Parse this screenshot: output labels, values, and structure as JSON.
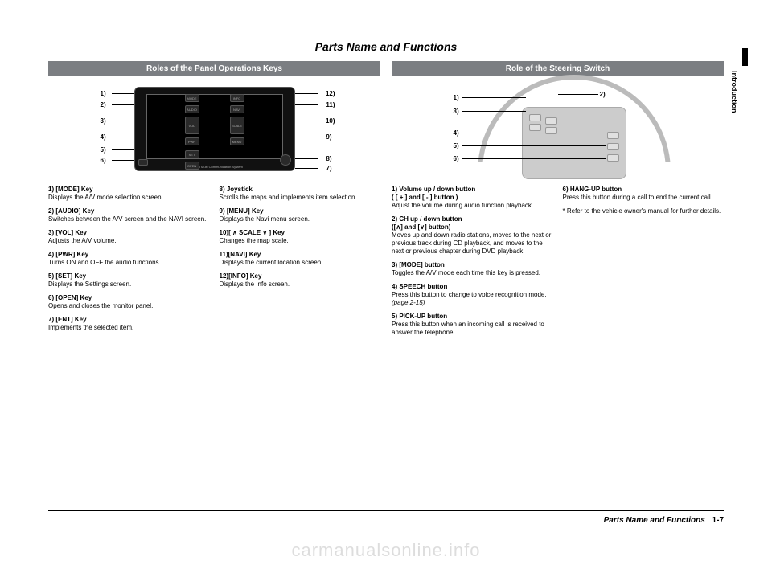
{
  "title": "Parts Name and Functions",
  "side_tab": "Introduction",
  "left": {
    "header": "Roles of the Panel Operations Keys",
    "labels": {
      "l1": "1)",
      "l2": "2)",
      "l3": "3)",
      "l4": "4)",
      "l5": "5)",
      "l6": "6)",
      "r7": "7)",
      "r8": "8)",
      "r9": "9)",
      "r10": "10)",
      "r11": "11)",
      "r12": "12)"
    },
    "btns": {
      "mode": "MODE",
      "audio": "AUDIO",
      "vol": "VOL",
      "pwr": "PWR",
      "set": "SET",
      "open": "OPEN",
      "info": "INFO",
      "navi": "NAVI",
      "scale": "SCALE",
      "menu": "MENU"
    },
    "brand": "Mitsubishi Multi Communication System",
    "colA": [
      {
        "t": "1) [MODE] Key",
        "d": "Displays the A/V mode selection screen."
      },
      {
        "t": "2) [AUDIO] Key",
        "d": "Switches between the A/V screen and the NAVI screen."
      },
      {
        "t": "3) [VOL] Key",
        "d": "Adjusts the A/V volume."
      },
      {
        "t": "4) [PWR] Key",
        "d": "Turns ON and OFF the audio functions."
      },
      {
        "t": "5) [SET] Key",
        "d": "Displays the Settings screen."
      },
      {
        "t": "6) [OPEN] Key",
        "d": "Opens and closes the monitor panel."
      },
      {
        "t": "7) [ENT] Key",
        "d": "Implements the selected item."
      }
    ],
    "colB": [
      {
        "t": "8) Joystick",
        "d": "Scrolls the maps and implements item selection."
      },
      {
        "t": "9) [MENU] Key",
        "d": "Displays the Navi menu screen."
      },
      {
        "t": "10)[ ∧ SCALE ∨ ] Key",
        "d": "Changes the map scale."
      },
      {
        "t": "11)[NAVI] Key",
        "d": "Displays the current location screen."
      },
      {
        "t": "12)[INFO] Key",
        "d": "Displays the Info screen."
      }
    ]
  },
  "right": {
    "header": "Role of the Steering Switch",
    "labels": {
      "s1": "1)",
      "s2": "2)",
      "s3": "3)",
      "s4": "4)",
      "s5": "5)",
      "s6": "6)"
    },
    "colA": [
      {
        "t": "1) Volume up / down button",
        "sub": "( [ + ] and [ - ] button )",
        "d": "Adjust the volume during audio function playback."
      },
      {
        "t": "2) CH up / down button",
        "sub": "([∧] and [∨] button)",
        "d": "Moves up and down radio stations, moves to the next or previous track during CD playback, and moves to the next or previous chapter during DVD playback."
      },
      {
        "t": "3) [MODE] button",
        "d": "Toggles the A/V mode each time this key is pressed."
      },
      {
        "t": "4) SPEECH button",
        "d": "Press this button to change to voice recognition mode.",
        "ref": "(page 2-15)"
      },
      {
        "t": "5) PICK-UP button",
        "d": "Press this button when an incoming call is received to answer the telephone."
      }
    ],
    "colB": [
      {
        "t": "6) HANG-UP button",
        "d": "Press this button during a call to end the current call."
      }
    ],
    "footnote": "* Refer to the vehicle owner's manual for further details."
  },
  "footer_title": "Parts Name and Functions",
  "footer_page": "1-7",
  "watermark": "carmanualsonline.info"
}
